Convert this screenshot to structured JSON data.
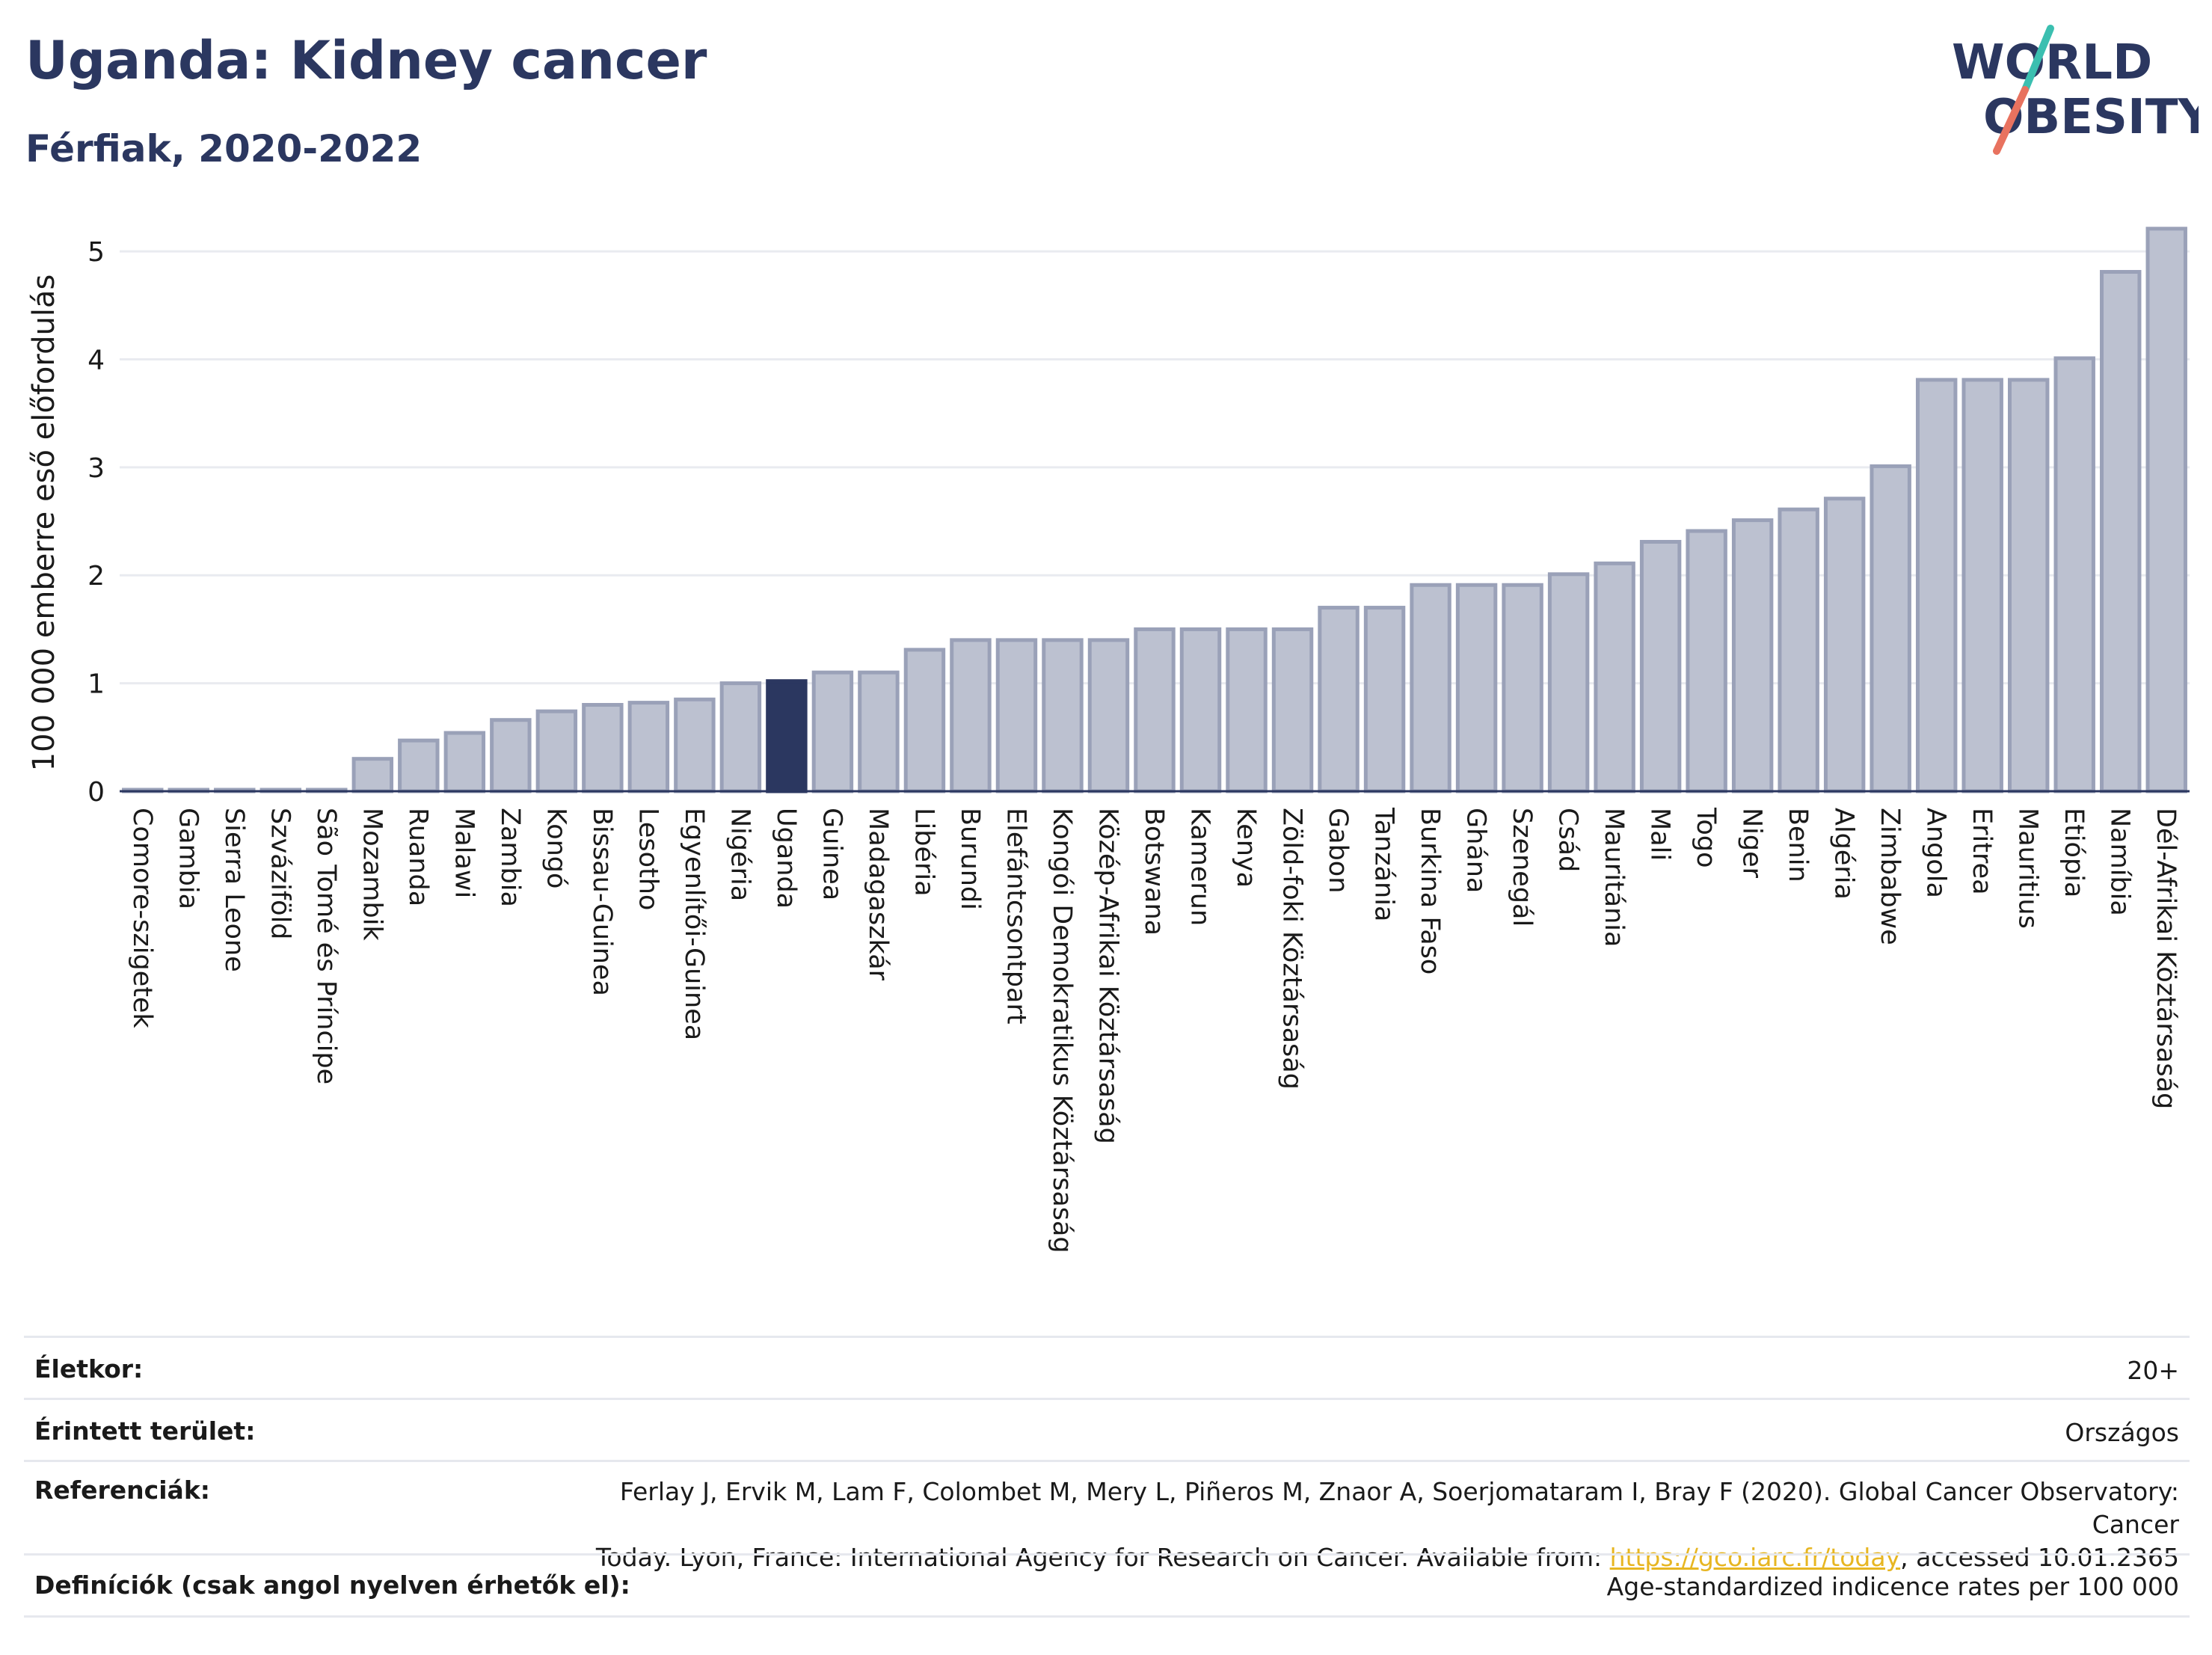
{
  "title": "Uganda: Kidney cancer",
  "subtitle": "Férfiak, 2020-2022",
  "logo": {
    "line1": "WORLD",
    "line2": "OBESITY",
    "text_color": "#2b3760",
    "slash_teal": "#3bbfb0",
    "slash_red": "#e8725f"
  },
  "colors": {
    "bar": "#bcc1d0",
    "bar_stroke": "#9aa1b8",
    "highlight": "#2b3760",
    "axis_text": "#1a1a1a",
    "grid": "#e9ebf0"
  },
  "chart_data": {
    "type": "bar",
    "ylabel": "100 000 emberre eső előfordulás",
    "ylim": [
      0,
      5.25
    ],
    "yticks": [
      0,
      1,
      2,
      3,
      4,
      5
    ],
    "grid": true,
    "highlight": "Uganda",
    "categories": [
      "Comore-szigetek",
      "Gambia",
      "Sierra Leone",
      "Szváziföld",
      "São Tomé és Príncipe",
      "Mozambik",
      "Ruanda",
      "Malawi",
      "Zambia",
      "Kongó",
      "Bissau-Guinea",
      "Lesotho",
      "Egyenlítői-Guinea",
      "Nigéria",
      "Uganda",
      "Guinea",
      "Madagaszkár",
      "Libéria",
      "Burundi",
      "Elefántcsontpart",
      "Kongói Demokratikus Köztársaság",
      "Közép-Afrikai Köztársaság",
      "Botswana",
      "Kamerun",
      "Kenya",
      "Zöld-foki Köztársaság",
      "Gabon",
      "Tanzánia",
      "Burkina Faso",
      "Ghána",
      "Szenegál",
      "Csád",
      "Mauritánia",
      "Mali",
      "Togo",
      "Niger",
      "Benin",
      "Algéria",
      "Zimbabwe",
      "Angola",
      "Eritrea",
      "Mauritius",
      "Etiópia",
      "Namíbia",
      "Dél-Afrikai Köztársaság"
    ],
    "values": [
      0.01,
      0.01,
      0.01,
      0.01,
      0.01,
      0.3,
      0.47,
      0.54,
      0.66,
      0.74,
      0.8,
      0.82,
      0.85,
      1.0,
      1.02,
      1.1,
      1.1,
      1.31,
      1.4,
      1.4,
      1.4,
      1.4,
      1.5,
      1.5,
      1.5,
      1.5,
      1.7,
      1.7,
      1.91,
      1.91,
      1.91,
      2.01,
      2.11,
      2.31,
      2.41,
      2.51,
      2.61,
      2.71,
      3.01,
      3.81,
      3.81,
      3.81,
      4.01,
      4.81,
      5.21
    ]
  },
  "info": {
    "age_label": "Életkor:",
    "age_value": "20+",
    "area_label": "Érintett terület:",
    "area_value": "Országos",
    "ref_label": "Referenciák:",
    "ref_text1": "Ferlay J, Ervik M, Lam F, Colombet M, Mery L, Piñeros M, Znaor A, Soerjomataram I, Bray F (2020). Global Cancer Observatory: Cancer",
    "ref_text2": "Today. Lyon, France: International Agency for Research on Cancer. Available from: ",
    "ref_link": "https://gco.iarc.fr/today",
    "ref_text3": ", accessed 10.01.2365",
    "def_label": "Definíciók (csak angol nyelven érhetők el):",
    "def_value": "Age-standardized indicence rates per 100 000"
  }
}
